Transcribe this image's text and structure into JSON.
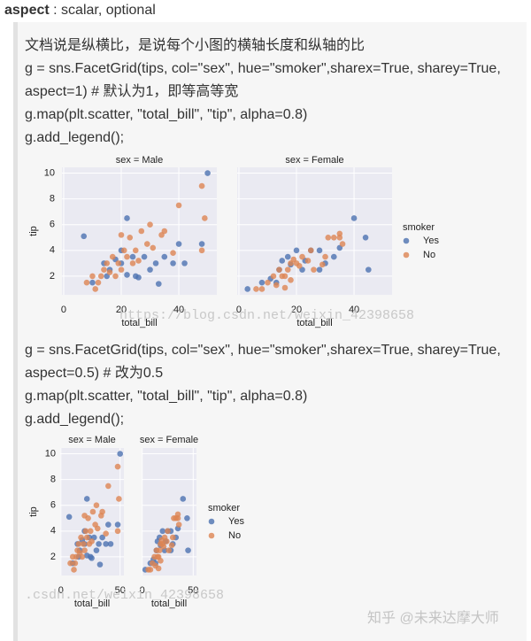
{
  "header": {
    "term": "aspect",
    "desc": " : scalar, optional"
  },
  "text_before": [
    "文档说是纵横比，是说每个小图的横轴长度和纵轴的比",
    "g = sns.FacetGrid(tips, col=\"sex\", hue=\"smoker\",sharex=True, sharey=True,",
    "aspect=1) # 默认为1，即等高等宽",
    "g.map(plt.scatter, \"total_bill\", \"tip\", alpha=0.8)",
    "g.add_legend();"
  ],
  "text_between": [
    "g = sns.FacetGrid(tips, col=\"sex\", hue=\"smoker\",sharex=True, sharey=True,",
    "aspect=0.5) # 改为0.5",
    "g.map(plt.scatter, \"total_bill\", \"tip\", alpha=0.8)",
    "g.add_legend();"
  ],
  "watermarks": [
    "https://blog.csdn.net/weixin_42398658",
    ".csdn.net/weixin_42398658",
    "知乎 @未来达摩大师"
  ],
  "chart_data": [
    {
      "type": "scatter",
      "xlabel": "total_bill",
      "ylabel": "tip",
      "legend_title": "smoker",
      "hues": [
        {
          "name": "Yes",
          "color": "#4c72b0"
        },
        {
          "name": "No",
          "color": "#dd8452"
        }
      ],
      "xlim": [
        -0.6,
        53.2
      ],
      "ylim": [
        0.55,
        10.45
      ],
      "xticks": [
        0,
        20,
        40
      ],
      "yticks": [
        2,
        4,
        6,
        8,
        10
      ],
      "grid": true,
      "facets": [
        {
          "title": "sex = Male",
          "series": [
            {
              "x": [
                7,
                10,
                15,
                18,
                20,
                22,
                24,
                25,
                28,
                30,
                32,
                35,
                38,
                40,
                42,
                48,
                50,
                16,
                20,
                26,
                33,
                22,
                14
              ],
              "values": [
                5.1,
                1.5,
                2,
                3.3,
                3,
                6.5,
                3.5,
                2,
                3.5,
                2.5,
                3,
                3.5,
                3,
                4.5,
                3,
                4.5,
                10,
                2.5,
                4,
                1.9,
                1.4,
                2.1,
                3
              ]
            },
            {
              "x": [
                8,
                10,
                12,
                13,
                14,
                15,
                16,
                17,
                18,
                19,
                20,
                21,
                22,
                23,
                24,
                25,
                27,
                29,
                30,
                31,
                35,
                38,
                40,
                48,
                49,
                48,
                11,
                20,
                26,
                34
              ],
              "values": [
                1.5,
                2,
                1.5,
                2,
                2.5,
                3,
                2.3,
                3.5,
                2,
                3,
                2.5,
                4,
                3.5,
                5,
                3,
                4,
                5.5,
                4.5,
                6,
                4.2,
                5.5,
                3.8,
                7.5,
                9,
                6.5,
                4,
                1,
                5.2,
                3.2,
                5.2
              ]
            }
          ]
        },
        {
          "title": "sex = Female",
          "series": [
            {
              "x": [
                3,
                8,
                11,
                14,
                15,
                17,
                18,
                20,
                22,
                23,
                25,
                28,
                30,
                33,
                28,
                40,
                45,
                44,
                35,
                13
              ],
              "values": [
                1,
                1.5,
                1.8,
                2.5,
                3.2,
                3.5,
                2.9,
                4,
                2.5,
                3.2,
                4,
                2.5,
                3,
                3.5,
                4,
                6.5,
                2.5,
                5,
                4.2,
                1.5
              ]
            },
            {
              "x": [
                6,
                8,
                10,
                12,
                13,
                14,
                15,
                16,
                17,
                18,
                18,
                19,
                20,
                21,
                22,
                24,
                25,
                26,
                30,
                31,
                33,
                35,
                36,
                35,
                16,
                29
              ],
              "values": [
                1,
                1,
                1.5,
                2,
                1.3,
                2.5,
                2,
                2,
                2.5,
                3,
                1.7,
                3.3,
                3,
                2.8,
                3.5,
                3.2,
                4,
                2.5,
                3.5,
                5,
                5,
                5,
                4.5,
                5.3,
                1.1,
                2.9
              ]
            }
          ]
        }
      ]
    },
    {
      "type": "scatter",
      "xlabel": "total_bill",
      "ylabel": "tip",
      "legend_title": "smoker",
      "hues": [
        {
          "name": "Yes",
          "color": "#4c72b0"
        },
        {
          "name": "No",
          "color": "#dd8452"
        }
      ],
      "xlim": [
        -0.6,
        53.2
      ],
      "ylim": [
        0.55,
        10.45
      ],
      "xticks": [
        0,
        50
      ],
      "yticks": [
        2,
        4,
        6,
        8,
        10
      ],
      "grid": true,
      "facets": [
        {
          "title": "sex = Male",
          "series": [
            {
              "x": [
                7,
                10,
                15,
                18,
                20,
                22,
                24,
                25,
                28,
                30,
                32,
                35,
                38,
                40,
                42,
                48,
                50,
                16,
                20,
                26,
                33,
                22,
                14
              ],
              "values": [
                5.1,
                1.5,
                2,
                3.3,
                3,
                6.5,
                3.5,
                2,
                3.5,
                2.5,
                3,
                3.5,
                3,
                4.5,
                3,
                4.5,
                10,
                2.5,
                4,
                1.9,
                1.4,
                2.1,
                3
              ]
            },
            {
              "x": [
                8,
                10,
                12,
                13,
                14,
                15,
                16,
                17,
                18,
                19,
                20,
                21,
                22,
                23,
                24,
                25,
                27,
                29,
                30,
                31,
                35,
                38,
                40,
                48,
                49,
                48,
                11,
                20,
                26,
                34
              ],
              "values": [
                1.5,
                2,
                1.5,
                2,
                2.5,
                3,
                2.3,
                3.5,
                2,
                3,
                2.5,
                4,
                3.5,
                5,
                3,
                4,
                5.5,
                4.5,
                6,
                4.2,
                5.5,
                3.8,
                7.5,
                9,
                6.5,
                4,
                1,
                5.2,
                3.2,
                5.2
              ]
            }
          ]
        },
        {
          "title": "sex = Female",
          "series": [
            {
              "x": [
                3,
                8,
                11,
                14,
                15,
                17,
                18,
                20,
                22,
                23,
                25,
                28,
                30,
                33,
                28,
                40,
                45,
                44,
                35,
                13
              ],
              "values": [
                1,
                1.5,
                1.8,
                2.5,
                3.2,
                3.5,
                2.9,
                4,
                2.5,
                3.2,
                4,
                2.5,
                3,
                3.5,
                4,
                6.5,
                2.5,
                5,
                4.2,
                1.5
              ]
            },
            {
              "x": [
                6,
                8,
                10,
                12,
                13,
                14,
                15,
                16,
                17,
                18,
                18,
                19,
                20,
                21,
                22,
                24,
                25,
                26,
                30,
                31,
                33,
                35,
                36,
                35,
                16,
                29
              ],
              "values": [
                1,
                1,
                1.5,
                2,
                1.3,
                2.5,
                2,
                2,
                2.5,
                3,
                1.7,
                3.3,
                3,
                2.8,
                3.5,
                3.2,
                4,
                2.5,
                3.5,
                5,
                5,
                5,
                4.5,
                5.3,
                1.1,
                2.9
              ]
            }
          ]
        }
      ]
    }
  ]
}
